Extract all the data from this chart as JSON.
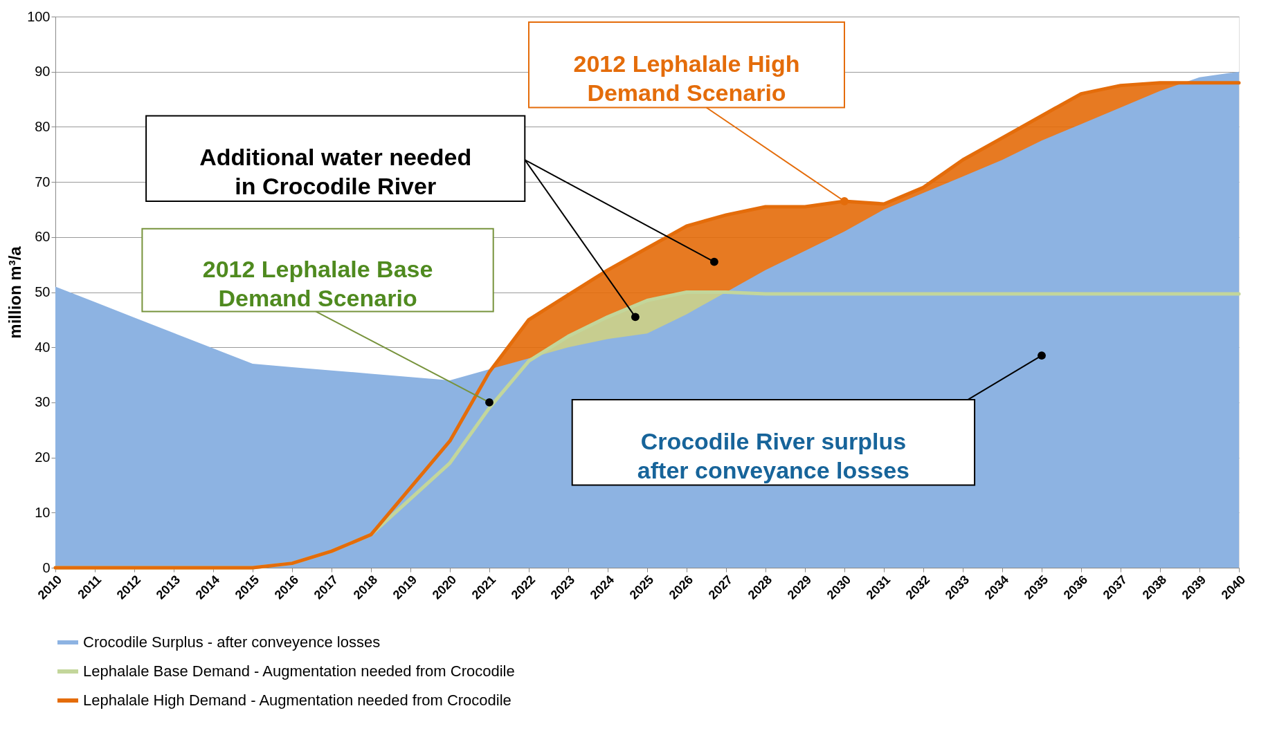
{
  "chart_data": {
    "type": "area",
    "ylabel": "million m³/a",
    "x": [
      2010,
      2011,
      2012,
      2013,
      2014,
      2015,
      2016,
      2017,
      2018,
      2019,
      2020,
      2021,
      2022,
      2023,
      2024,
      2025,
      2026,
      2027,
      2028,
      2029,
      2030,
      2031,
      2032,
      2033,
      2034,
      2035,
      2036,
      2037,
      2038,
      2039,
      2040
    ],
    "xlim": [
      2010,
      2040
    ],
    "xticks": [
      2010,
      2011,
      2012,
      2013,
      2014,
      2015,
      2016,
      2017,
      2018,
      2019,
      2020,
      2021,
      2022,
      2023,
      2024,
      2025,
      2026,
      2027,
      2028,
      2029,
      2030,
      2031,
      2032,
      2033,
      2034,
      2035,
      2036,
      2037,
      2038,
      2039,
      2040
    ],
    "ylim": [
      0,
      100
    ],
    "yticks": [
      0,
      10,
      20,
      30,
      40,
      50,
      60,
      70,
      80,
      90,
      100
    ],
    "grid": "y",
    "legend": "bottom",
    "series": [
      {
        "name": "Crocodile Surplus - after conveyence losses",
        "type": "area",
        "color": "#8db3e2",
        "values": [
          51,
          48.2,
          45.4,
          42.6,
          39.8,
          37,
          36.4,
          35.8,
          35.2,
          34.6,
          34,
          36,
          38,
          40,
          41.5,
          42.5,
          46,
          50,
          54,
          57.5,
          61,
          65,
          68,
          71,
          74,
          77.5,
          80.5,
          83.5,
          86.5,
          89,
          90
        ]
      },
      {
        "name": "Lephalale Base Demand - Augmentation needed from Crocodile",
        "type": "area",
        "color": "#c3d69b",
        "values": [
          0,
          0,
          0,
          0,
          0,
          0,
          0.8,
          3,
          6,
          12.5,
          19,
          29,
          37.5,
          42,
          45.5,
          48.5,
          50,
          50,
          49.7,
          49.7,
          49.7,
          49.7,
          49.7,
          49.7,
          49.7,
          49.7,
          49.7,
          49.7,
          49.7,
          49.7,
          49.7
        ]
      },
      {
        "name": "Lephalale High Demand - Augmentation needed from Crocodile",
        "type": "area",
        "color": "#e46c0a",
        "values": [
          0,
          0,
          0,
          0,
          0,
          0,
          0.8,
          3,
          6,
          14.5,
          23,
          35.5,
          45,
          49.5,
          54,
          58,
          62,
          64,
          65.5,
          65.5,
          66.5,
          66,
          69,
          74,
          78,
          82,
          86,
          87.5,
          88,
          88,
          88
        ]
      }
    ],
    "annotations": [
      {
        "text": "2012 Lephalale High\nDemand Scenario",
        "x": 2030,
        "y": 66.5
      },
      "Additional water needed\nin Crocodile River",
      {
        "text": "2012 Lephalale Base\nDemand Scenario",
        "x": 2021,
        "y": 30
      },
      {
        "text": "Crocodile River surplus\nafter conveyance losses",
        "x": 2035,
        "y": 38.5
      }
    ]
  }
}
